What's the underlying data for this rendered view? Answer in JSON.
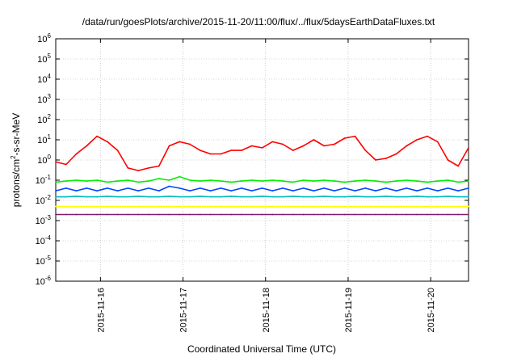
{
  "chart_data": {
    "type": "line",
    "title": "/data/run/goesPlots/archive/2015-11-20/11:00/flux/../flux/5daysEarthDataFluxes.txt",
    "xlabel": "Coordinated Universal Time (UTC)",
    "ylabel": "protons/cm²-s-sr-MeV",
    "yscale": "log",
    "ylim": [
      1e-06,
      1000000.0
    ],
    "xlim": [
      "2015-11-15T11:00",
      "2015-11-20T11:00"
    ],
    "x_ticks": [
      "2015-11-16",
      "2015-11-17",
      "2015-11-18",
      "2015-11-19",
      "2015-11-20"
    ],
    "y_ticks": [
      {
        "base": "10",
        "exp": "-6",
        "value": 1e-06
      },
      {
        "base": "10",
        "exp": "-5",
        "value": 1e-05
      },
      {
        "base": "10",
        "exp": "-4",
        "value": 0.0001
      },
      {
        "base": "10",
        "exp": "-3",
        "value": 0.001
      },
      {
        "base": "10",
        "exp": "-2",
        "value": 0.01
      },
      {
        "base": "10",
        "exp": "-1",
        "value": 0.1
      },
      {
        "base": "10",
        "exp": "0",
        "value": 1
      },
      {
        "base": "10",
        "exp": "1",
        "value": 10
      },
      {
        "base": "10",
        "exp": "2",
        "value": 100
      },
      {
        "base": "10",
        "exp": "3",
        "value": 1000
      },
      {
        "base": "10",
        "exp": "4",
        "value": 10000
      },
      {
        "base": "10",
        "exp": "5",
        "value": 100000
      },
      {
        "base": "10",
        "exp": "6",
        "value": 1000000
      }
    ],
    "grid": true,
    "x": [
      "2015-11-15T11:00",
      "2015-11-15T14:00",
      "2015-11-15T17:00",
      "2015-11-15T20:00",
      "2015-11-15T23:00",
      "2015-11-16T02:00",
      "2015-11-16T05:00",
      "2015-11-16T08:00",
      "2015-11-16T11:00",
      "2015-11-16T14:00",
      "2015-11-16T17:00",
      "2015-11-16T20:00",
      "2015-11-16T23:00",
      "2015-11-17T02:00",
      "2015-11-17T05:00",
      "2015-11-17T08:00",
      "2015-11-17T11:00",
      "2015-11-17T14:00",
      "2015-11-17T17:00",
      "2015-11-17T20:00",
      "2015-11-17T23:00",
      "2015-11-18T02:00",
      "2015-11-18T05:00",
      "2015-11-18T08:00",
      "2015-11-18T11:00",
      "2015-11-18T14:00",
      "2015-11-18T17:00",
      "2015-11-18T20:00",
      "2015-11-18T23:00",
      "2015-11-19T02:00",
      "2015-11-19T05:00",
      "2015-11-19T08:00",
      "2015-11-19T11:00",
      "2015-11-19T14:00",
      "2015-11-19T17:00",
      "2015-11-19T20:00",
      "2015-11-19T23:00",
      "2015-11-20T02:00",
      "2015-11-20T05:00",
      "2015-11-20T08:00",
      "2015-11-20T11:00"
    ],
    "series": [
      {
        "color": "#ff0000",
        "values": [
          0.8,
          0.6,
          2,
          5,
          15,
          8,
          3,
          0.4,
          0.3,
          0.4,
          0.5,
          5,
          8,
          6,
          3,
          2,
          2,
          3,
          3,
          5,
          4,
          8,
          6,
          3,
          5,
          10,
          5,
          6,
          12,
          15,
          3,
          1,
          1.2,
          2,
          5,
          10,
          15,
          8,
          1,
          0.5,
          4
        ]
      },
      {
        "color": "#00ee00",
        "values": [
          0.08,
          0.09,
          0.1,
          0.09,
          0.1,
          0.08,
          0.09,
          0.1,
          0.08,
          0.09,
          0.12,
          0.1,
          0.15,
          0.1,
          0.09,
          0.1,
          0.09,
          0.08,
          0.09,
          0.1,
          0.09,
          0.1,
          0.09,
          0.08,
          0.1,
          0.09,
          0.1,
          0.09,
          0.08,
          0.09,
          0.1,
          0.09,
          0.08,
          0.09,
          0.1,
          0.09,
          0.08,
          0.09,
          0.1,
          0.08,
          0.09
        ]
      },
      {
        "color": "#0044ff",
        "values": [
          0.03,
          0.04,
          0.03,
          0.04,
          0.03,
          0.04,
          0.03,
          0.04,
          0.03,
          0.04,
          0.03,
          0.05,
          0.04,
          0.03,
          0.04,
          0.03,
          0.04,
          0.03,
          0.04,
          0.03,
          0.04,
          0.03,
          0.04,
          0.03,
          0.04,
          0.03,
          0.04,
          0.03,
          0.04,
          0.03,
          0.04,
          0.03,
          0.04,
          0.03,
          0.04,
          0.03,
          0.04,
          0.03,
          0.04,
          0.03,
          0.04
        ]
      },
      {
        "color": "#00bbbb",
        "values": [
          0.015,
          0.015,
          0.016,
          0.015,
          0.015,
          0.016,
          0.015,
          0.015,
          0.016,
          0.015,
          0.015,
          0.016,
          0.015,
          0.015,
          0.016,
          0.015,
          0.015,
          0.016,
          0.015,
          0.015,
          0.016,
          0.015,
          0.015,
          0.016,
          0.015,
          0.015,
          0.016,
          0.015,
          0.015,
          0.016,
          0.015,
          0.015,
          0.016,
          0.015,
          0.015,
          0.016,
          0.015,
          0.015,
          0.016,
          0.015,
          0.015
        ]
      },
      {
        "color": "#ffff00",
        "values": [
          0.005,
          0.005,
          0.005,
          0.005,
          0.005,
          0.005,
          0.005,
          0.005,
          0.005,
          0.005,
          0.005,
          0.005,
          0.005,
          0.005,
          0.005,
          0.005,
          0.005,
          0.005,
          0.005,
          0.005,
          0.005,
          0.005,
          0.005,
          0.005,
          0.005,
          0.005,
          0.005,
          0.005,
          0.005,
          0.005,
          0.005,
          0.005,
          0.005,
          0.005,
          0.005,
          0.005,
          0.005,
          0.005,
          0.005,
          0.005,
          0.005
        ]
      },
      {
        "color": "#7a1e6e",
        "values": [
          0.002,
          0.002,
          0.002,
          0.002,
          0.002,
          0.002,
          0.002,
          0.002,
          0.002,
          0.002,
          0.002,
          0.002,
          0.002,
          0.002,
          0.002,
          0.002,
          0.002,
          0.002,
          0.002,
          0.002,
          0.002,
          0.002,
          0.002,
          0.002,
          0.002,
          0.002,
          0.002,
          0.002,
          0.002,
          0.002,
          0.002,
          0.002,
          0.002,
          0.002,
          0.002,
          0.002,
          0.002,
          0.002,
          0.002,
          0.002,
          0.002
        ]
      }
    ]
  }
}
